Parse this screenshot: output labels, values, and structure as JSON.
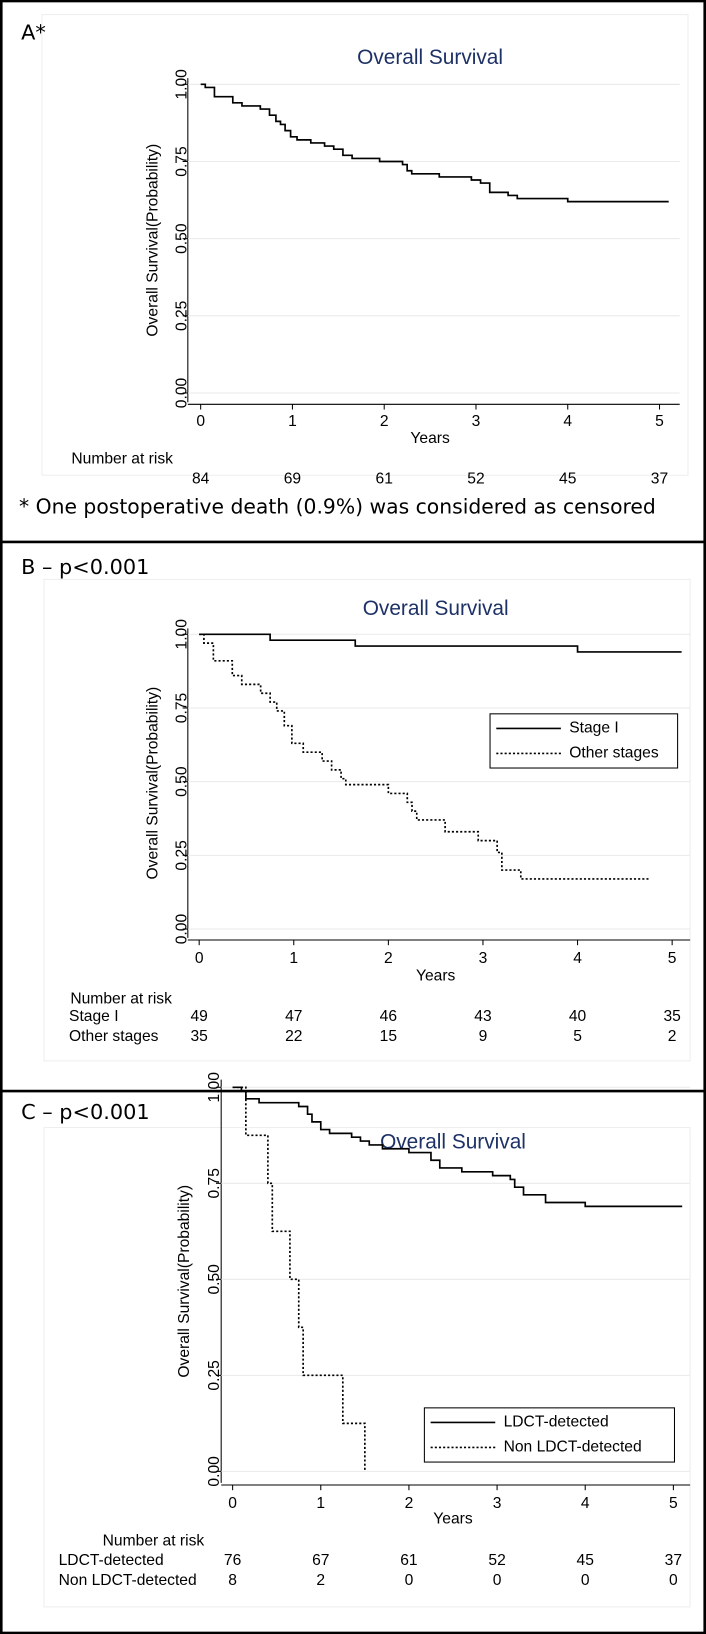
{
  "chart_data": [
    {
      "type": "line",
      "step": true,
      "panel_label": "A*",
      "title": "Overall Survival",
      "x_label": "Years",
      "y_label": "Overall Survival(Probability)",
      "xlim": [
        -0.14,
        5.22
      ],
      "xticks": [
        0,
        1,
        2,
        3,
        4,
        5
      ],
      "ylim": [
        -0.03,
        1.02
      ],
      "yticks": [
        {
          "value": 0,
          "label": "0.00"
        },
        0.25,
        {
          "value": 0.5,
          "label": "0.50"
        },
        0.75,
        {
          "value": 1,
          "label": "1.00"
        }
      ],
      "grid": true,
      "series": [
        {
          "color": "#000000",
          "linestyle": "solid",
          "x": [
            0,
            0.05,
            0.15,
            0.35,
            0.45,
            0.65,
            0.75,
            0.82,
            0.87,
            0.92,
            0.98,
            1.05,
            1.2,
            1.35,
            1.45,
            1.55,
            1.65,
            1.95,
            2.2,
            2.25,
            2.3,
            2.6,
            2.95,
            3.05,
            3.15,
            3.35,
            3.45,
            4.0,
            5.1
          ],
          "values": [
            1.0,
            0.99,
            0.96,
            0.94,
            0.93,
            0.92,
            0.9,
            0.88,
            0.87,
            0.85,
            0.83,
            0.82,
            0.81,
            0.8,
            0.79,
            0.77,
            0.76,
            0.75,
            0.74,
            0.72,
            0.71,
            0.7,
            0.69,
            0.68,
            0.65,
            0.64,
            0.63,
            0.62,
            0.62
          ]
        }
      ],
      "risk_table": {
        "title": "Number at risk",
        "rows": [
          {
            "values": [
              84,
              69,
              61,
              52,
              45,
              37
            ]
          }
        ]
      },
      "note": "* One postoperative death (0.9%) was considered as censored"
    },
    {
      "type": "line",
      "step": true,
      "panel_label": "B – p<0.001",
      "title": "Overall Survival",
      "x_label": "Years",
      "y_label": "Overall Survival(Probability)",
      "xlim": [
        -0.12,
        5.19
      ],
      "xticks": [
        0,
        1,
        2,
        3,
        4,
        5
      ],
      "ylim": [
        -0.03,
        1.02
      ],
      "yticks": [
        {
          "value": 0,
          "label": "0.00"
        },
        0.25,
        {
          "value": 0.5,
          "label": "0.50"
        },
        0.75,
        {
          "value": 1,
          "label": "1.00"
        }
      ],
      "grid": true,
      "legend": "right",
      "series": [
        {
          "name": "Stage I",
          "color": "#000000",
          "linestyle": "solid",
          "x": [
            0,
            0.75,
            1.65,
            4.0,
            5.1
          ],
          "values": [
            1.0,
            0.98,
            0.96,
            0.94,
            0.94
          ]
        },
        {
          "name": "Other stages",
          "color": "#000000",
          "linestyle": "dotted",
          "x": [
            0,
            0.05,
            0.15,
            0.35,
            0.45,
            0.65,
            0.75,
            0.82,
            0.9,
            0.98,
            1.1,
            1.3,
            1.4,
            1.5,
            1.55,
            2.0,
            2.2,
            2.25,
            2.3,
            2.6,
            2.95,
            3.15,
            3.2,
            3.4,
            4.75
          ],
          "values": [
            1.0,
            0.97,
            0.91,
            0.86,
            0.83,
            0.8,
            0.77,
            0.74,
            0.69,
            0.63,
            0.6,
            0.57,
            0.54,
            0.51,
            0.49,
            0.46,
            0.43,
            0.4,
            0.37,
            0.33,
            0.3,
            0.26,
            0.2,
            0.17,
            0.17
          ]
        }
      ],
      "risk_table": {
        "title": "Number at risk",
        "rows": [
          {
            "name": "Stage I",
            "values": [
              49,
              47,
              46,
              43,
              40,
              35
            ]
          },
          {
            "name": "Other stages",
            "values": [
              35,
              22,
              15,
              9,
              5,
              2
            ]
          }
        ]
      }
    },
    {
      "type": "line",
      "step": true,
      "panel_label": "C – p<0.001",
      "title": "Overall Survival",
      "x_label": "Years",
      "y_label": "Overall Survival(Probability)",
      "xlim": [
        -0.13,
        5.19
      ],
      "xticks": [
        0,
        1,
        2,
        3,
        4,
        5
      ],
      "ylim": [
        -0.03,
        1.02
      ],
      "yticks": [
        {
          "value": 0,
          "label": "0.00"
        },
        0.25,
        {
          "value": 0.5,
          "label": "0.50"
        },
        0.75,
        {
          "value": 1,
          "label": "1.00"
        }
      ],
      "grid": true,
      "legend": "lower right",
      "series": [
        {
          "name": "LDCT-detected",
          "color": "#000000",
          "linestyle": "solid",
          "x": [
            0,
            0.1,
            0.15,
            0.3,
            0.75,
            0.85,
            0.9,
            1.0,
            1.1,
            1.35,
            1.45,
            1.55,
            1.7,
            2.0,
            2.25,
            2.35,
            2.6,
            2.95,
            3.15,
            3.2,
            3.3,
            3.55,
            4.0,
            5.1
          ],
          "values": [
            1.0,
            0.99,
            0.97,
            0.96,
            0.95,
            0.93,
            0.91,
            0.89,
            0.88,
            0.87,
            0.86,
            0.85,
            0.84,
            0.83,
            0.81,
            0.79,
            0.78,
            0.77,
            0.76,
            0.74,
            0.72,
            0.7,
            0.69,
            0.69
          ]
        },
        {
          "name": "Non LDCT-detected",
          "color": "#000000",
          "linestyle": "dotted",
          "x": [
            0,
            0.15,
            0.4,
            0.45,
            0.65,
            0.75,
            0.8,
            1.25,
            1.5
          ],
          "values": [
            1.0,
            0.875,
            0.75,
            0.625,
            0.5,
            0.375,
            0.25,
            0.125,
            0
          ]
        }
      ],
      "risk_table": {
        "title": "Number at risk",
        "rows": [
          {
            "name": "LDCT-detected",
            "values": [
              76,
              67,
              61,
              52,
              45,
              37
            ]
          },
          {
            "name": "Non LDCT-detected",
            "values": [
              8,
              2,
              0,
              0,
              0,
              0
            ]
          }
        ]
      }
    }
  ]
}
